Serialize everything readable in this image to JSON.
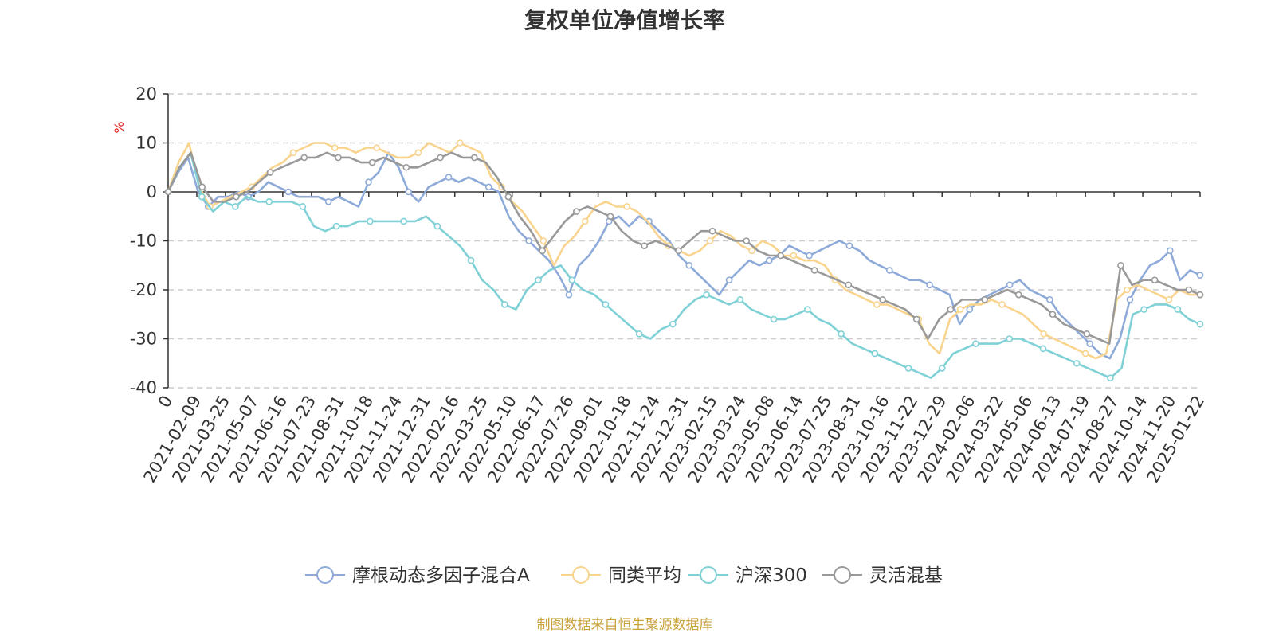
{
  "chart_data": {
    "type": "line",
    "title": "复权单位净值增长率",
    "ylabel": "%",
    "ylim": [
      -40,
      20
    ],
    "yticks": [
      20,
      10,
      0,
      -10,
      -20,
      -30,
      -40
    ],
    "grid": true,
    "legend_position": "bottom",
    "x_tick_labels": [
      "0",
      "2021-02-09",
      "2021-03-25",
      "2021-05-07",
      "2021-06-16",
      "2021-07-23",
      "2021-08-31",
      "2021-10-18",
      "2021-11-24",
      "2021-12-31",
      "2022-02-16",
      "2022-03-25",
      "2022-05-10",
      "2022-06-17",
      "2022-07-26",
      "2022-09-01",
      "2022-10-18",
      "2022-11-24",
      "2022-12-31",
      "2023-02-15",
      "2023-03-24",
      "2023-05-08",
      "2023-06-14",
      "2023-07-25",
      "2023-08-31",
      "2023-10-16",
      "2023-11-22",
      "2023-12-29",
      "2024-02-06",
      "2024-03-22",
      "2024-05-06",
      "2024-06-13",
      "2024-07-19",
      "2024-08-27",
      "2024-10-14",
      "2024-11-20",
      "2025-01-22"
    ],
    "series": [
      {
        "name": "摩根动态多因子混合A",
        "color": "#8eaad8",
        "values": [
          0,
          4,
          7,
          0,
          -3,
          -1,
          -1,
          0,
          -1,
          0,
          2,
          1,
          0,
          -1,
          -1,
          -1,
          -2,
          -1,
          -2,
          -3,
          2,
          4,
          8,
          5,
          0,
          -2,
          1,
          2,
          3,
          2,
          3,
          2,
          1,
          0,
          -5,
          -8,
          -10,
          -12,
          -14,
          -17,
          -21,
          -15,
          -13,
          -10,
          -6,
          -5,
          -7,
          -5,
          -6,
          -8,
          -10,
          -13,
          -15,
          -17,
          -19,
          -21,
          -18,
          -16,
          -14,
          -15,
          -14,
          -13,
          -11,
          -12,
          -13,
          -12,
          -11,
          -10,
          -11,
          -12,
          -14,
          -15,
          -16,
          -17,
          -18,
          -18,
          -19,
          -20,
          -21,
          -27,
          -24,
          -22,
          -21,
          -20,
          -19,
          -18,
          -20,
          -21,
          -22,
          -25,
          -27,
          -29,
          -31,
          -33,
          -34,
          -30,
          -22,
          -18,
          -15,
          -14,
          -12,
          -18,
          -16,
          -17
        ]
      },
      {
        "name": "同类平均",
        "color": "#f9d48e",
        "values": [
          0,
          6,
          10,
          1,
          -3,
          -2,
          -1,
          0,
          1,
          3,
          5,
          6,
          8,
          9,
          10,
          10,
          9,
          9,
          8,
          9,
          9,
          8,
          7,
          7,
          8,
          10,
          9,
          8,
          10,
          9,
          8,
          3,
          1,
          -2,
          -4,
          -7,
          -10,
          -15,
          -11,
          -9,
          -6,
          -3,
          -2,
          -3,
          -3,
          -4,
          -6,
          -9,
          -11,
          -12,
          -13,
          -12,
          -10,
          -8,
          -9,
          -11,
          -12,
          -10,
          -11,
          -13,
          -13,
          -14,
          -14,
          -15,
          -18,
          -20,
          -21,
          -22,
          -23,
          -23,
          -24,
          -25,
          -26,
          -31,
          -33,
          -26,
          -24,
          -23,
          -23,
          -22,
          -23,
          -24,
          -25,
          -27,
          -29,
          -30,
          -31,
          -32,
          -33,
          -34,
          -33,
          -22,
          -20,
          -19,
          -20,
          -21,
          -22,
          -20,
          -21,
          -21
        ]
      },
      {
        "name": "沪深300",
        "color": "#7fd1d6",
        "values": [
          0,
          5,
          8,
          -1,
          -4,
          -2,
          -3,
          -1,
          -2,
          -2,
          -2,
          -2,
          -3,
          -7,
          -8,
          -7,
          -7,
          -6,
          -6,
          -6,
          -6,
          -6,
          -6,
          -5,
          -7,
          -9,
          -11,
          -14,
          -18,
          -20,
          -23,
          -24,
          -20,
          -18,
          -16,
          -15,
          -18,
          -20,
          -21,
          -23,
          -25,
          -27,
          -29,
          -30,
          -28,
          -27,
          -24,
          -22,
          -21,
          -22,
          -23,
          -22,
          -24,
          -25,
          -26,
          -26,
          -25,
          -24,
          -26,
          -27,
          -29,
          -31,
          -32,
          -33,
          -34,
          -35,
          -36,
          -37,
          -38,
          -36,
          -33,
          -32,
          -31,
          -31,
          -31,
          -30,
          -30,
          -31,
          -32,
          -33,
          -34,
          -35,
          -36,
          -37,
          -38,
          -36,
          -25,
          -24,
          -23,
          -23,
          -24,
          -26,
          -27
        ]
      },
      {
        "name": "灵活混基",
        "color": "#999999",
        "values": [
          0,
          5,
          8,
          1,
          -2,
          -2,
          -1,
          0,
          2,
          4,
          5,
          6,
          7,
          7,
          8,
          7,
          7,
          6,
          6,
          7,
          6,
          5,
          5,
          6,
          7,
          8,
          7,
          7,
          6,
          3,
          -1,
          -5,
          -8,
          -12,
          -9,
          -6,
          -4,
          -3,
          -4,
          -5,
          -8,
          -10,
          -11,
          -10,
          -11,
          -12,
          -10,
          -8,
          -8,
          -9,
          -10,
          -10,
          -12,
          -13,
          -13,
          -14,
          -15,
          -16,
          -17,
          -18,
          -19,
          -20,
          -21,
          -22,
          -23,
          -24,
          -26,
          -30,
          -26,
          -24,
          -22,
          -22,
          -22,
          -21,
          -20,
          -21,
          -22,
          -23,
          -25,
          -27,
          -28,
          -29,
          -30,
          -31,
          -15,
          -19,
          -18,
          -18,
          -19,
          -20,
          -20,
          -21
        ]
      }
    ]
  },
  "footer": {
    "source": "制图数据来自恒生聚源数据库"
  }
}
